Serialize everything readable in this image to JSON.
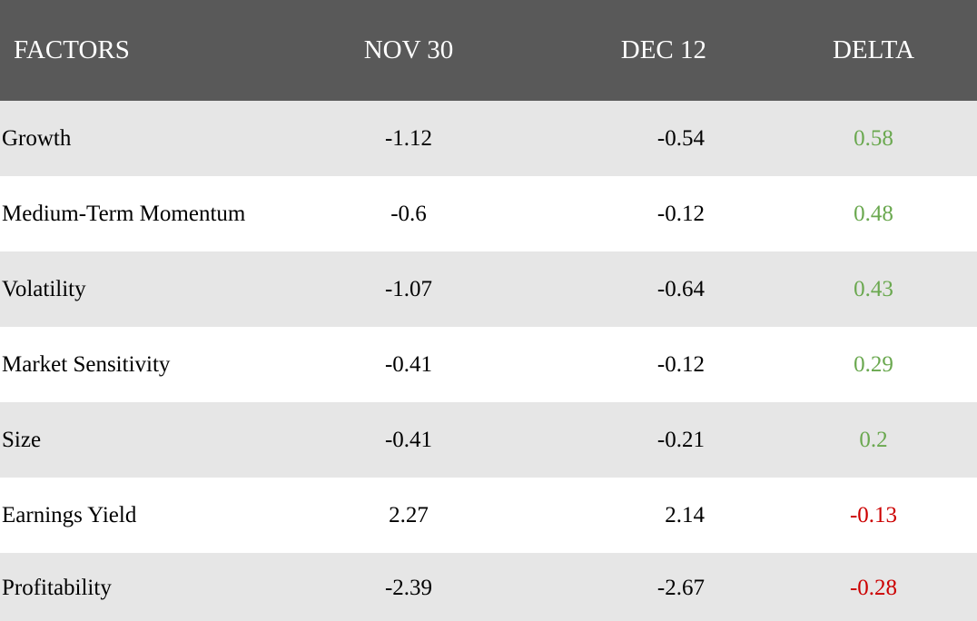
{
  "colors": {
    "header_bg": "#595959",
    "row_alt_bg": "#e6e6e6",
    "positive": "#6aa84f",
    "negative": "#cc0000"
  },
  "table": {
    "headers": [
      "FACTORS",
      "NOV 30",
      "DEC 12",
      "DELTA"
    ],
    "rows": [
      {
        "factor": "Growth",
        "nov30": "-1.12",
        "dec12": "-0.54",
        "delta": "0.58",
        "delta_sign": "positive"
      },
      {
        "factor": "Medium-Term Momentum",
        "nov30": "-0.6",
        "dec12": "-0.12",
        "delta": "0.48",
        "delta_sign": "positive"
      },
      {
        "factor": "Volatility",
        "nov30": "-1.07",
        "dec12": "-0.64",
        "delta": "0.43",
        "delta_sign": "positive"
      },
      {
        "factor": "Market Sensitivity",
        "nov30": "-0.41",
        "dec12": "-0.12",
        "delta": "0.29",
        "delta_sign": "positive"
      },
      {
        "factor": "Size",
        "nov30": "-0.41",
        "dec12": "-0.21",
        "delta": "0.2",
        "delta_sign": "positive"
      },
      {
        "factor": "Earnings Yield",
        "nov30": "2.27",
        "dec12": "2.14",
        "delta": "-0.13",
        "delta_sign": "negative"
      },
      {
        "factor": "Profitability",
        "nov30": "-2.39",
        "dec12": "-2.67",
        "delta": "-0.28",
        "delta_sign": "negative"
      }
    ]
  }
}
